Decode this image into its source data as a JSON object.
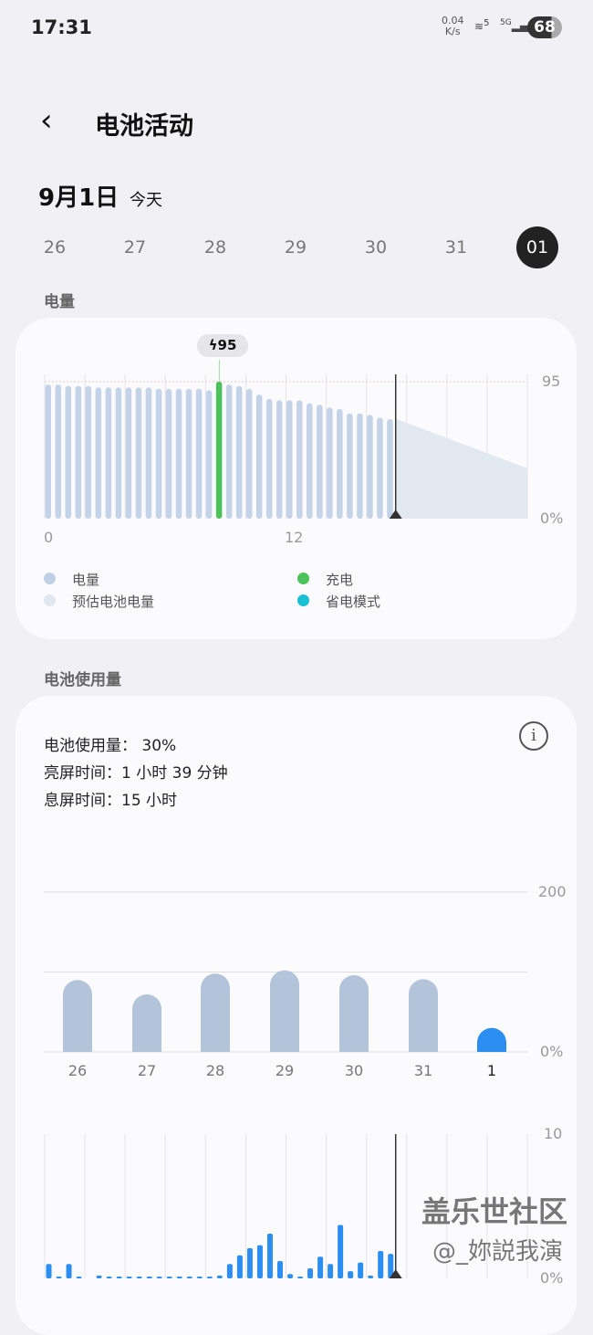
{
  "status": {
    "time": "17:31",
    "net_speed": "0.04",
    "net_unit": "K/s",
    "wifi": "wifi-icon",
    "wifi_label": "5",
    "cell_label": "5G",
    "battery": "68"
  },
  "header": {
    "title": "电池活动",
    "back_icon": "chevron-left-icon"
  },
  "date": {
    "label": "9月1日",
    "sub": "今天"
  },
  "days": [
    "26",
    "27",
    "28",
    "29",
    "30",
    "31",
    "01"
  ],
  "selected_day": "01",
  "battery_section": {
    "title": "电量",
    "tooltip": "95",
    "y_top": "95",
    "y_bottom": "0%",
    "x_labels": [
      "0",
      "12"
    ],
    "legend": [
      {
        "label": "电量",
        "color": "#bfcfe6"
      },
      {
        "label": "充电",
        "color": "#4cc35a"
      },
      {
        "label": "预估电池电量",
        "color": "#e2e8f0"
      },
      {
        "label": "省电模式",
        "color": "#1bbfd4"
      }
    ]
  },
  "usage_section": {
    "title": "电池使用量",
    "usage": "电池使用量： 30%",
    "screen_on": "亮屏时间：1 小时 39 分钟",
    "screen_off": "息屏时间：15 小时",
    "weekly_y_top": "200",
    "weekly_y_bottom": "0%",
    "hourly_y_top": "10",
    "hourly_y_bottom": "0%"
  },
  "watermark": {
    "line1": "盖乐世社区",
    "line2": "@_妳説我演"
  },
  "chart_data": [
    {
      "type": "bar",
      "title": "电量",
      "interval": "30 min",
      "x_range_hours": [
        0,
        24
      ],
      "ylim": [
        0,
        95
      ],
      "values": [
        93,
        93,
        92,
        92,
        92,
        91,
        91,
        91,
        91,
        91,
        91,
        90,
        90,
        90,
        90,
        90,
        89,
        95,
        93,
        92,
        90,
        86,
        83,
        82,
        82,
        82,
        80,
        79,
        77,
        76,
        73,
        73,
        72,
        70,
        69
      ],
      "charging_index": 17,
      "current_time_hours": 17.5,
      "predicted": {
        "from": [
          17.5,
          69
        ],
        "to": [
          24,
          35
        ]
      }
    },
    {
      "type": "bar",
      "categories": [
        "26",
        "27",
        "28",
        "29",
        "30",
        "31",
        "1"
      ],
      "values": [
        90,
        72,
        98,
        102,
        96,
        91,
        30
      ],
      "ylim": [
        0,
        200
      ],
      "highlight": "1"
    },
    {
      "type": "bar",
      "interval": "30 min",
      "ylim": [
        0,
        10
      ],
      "values": [
        1.0,
        0.1,
        1.0,
        0.1,
        0,
        0.2,
        0.1,
        0.1,
        0.1,
        0.1,
        0.1,
        0.1,
        0.1,
        0.1,
        0.1,
        0.1,
        0.1,
        0.2,
        1.0,
        1.6,
        2.1,
        2.3,
        3.1,
        1.2,
        0.3,
        0.1,
        0.7,
        1.5,
        1.0,
        3.7,
        0.5,
        1.1,
        0.2,
        1.9,
        1.7
      ]
    }
  ]
}
